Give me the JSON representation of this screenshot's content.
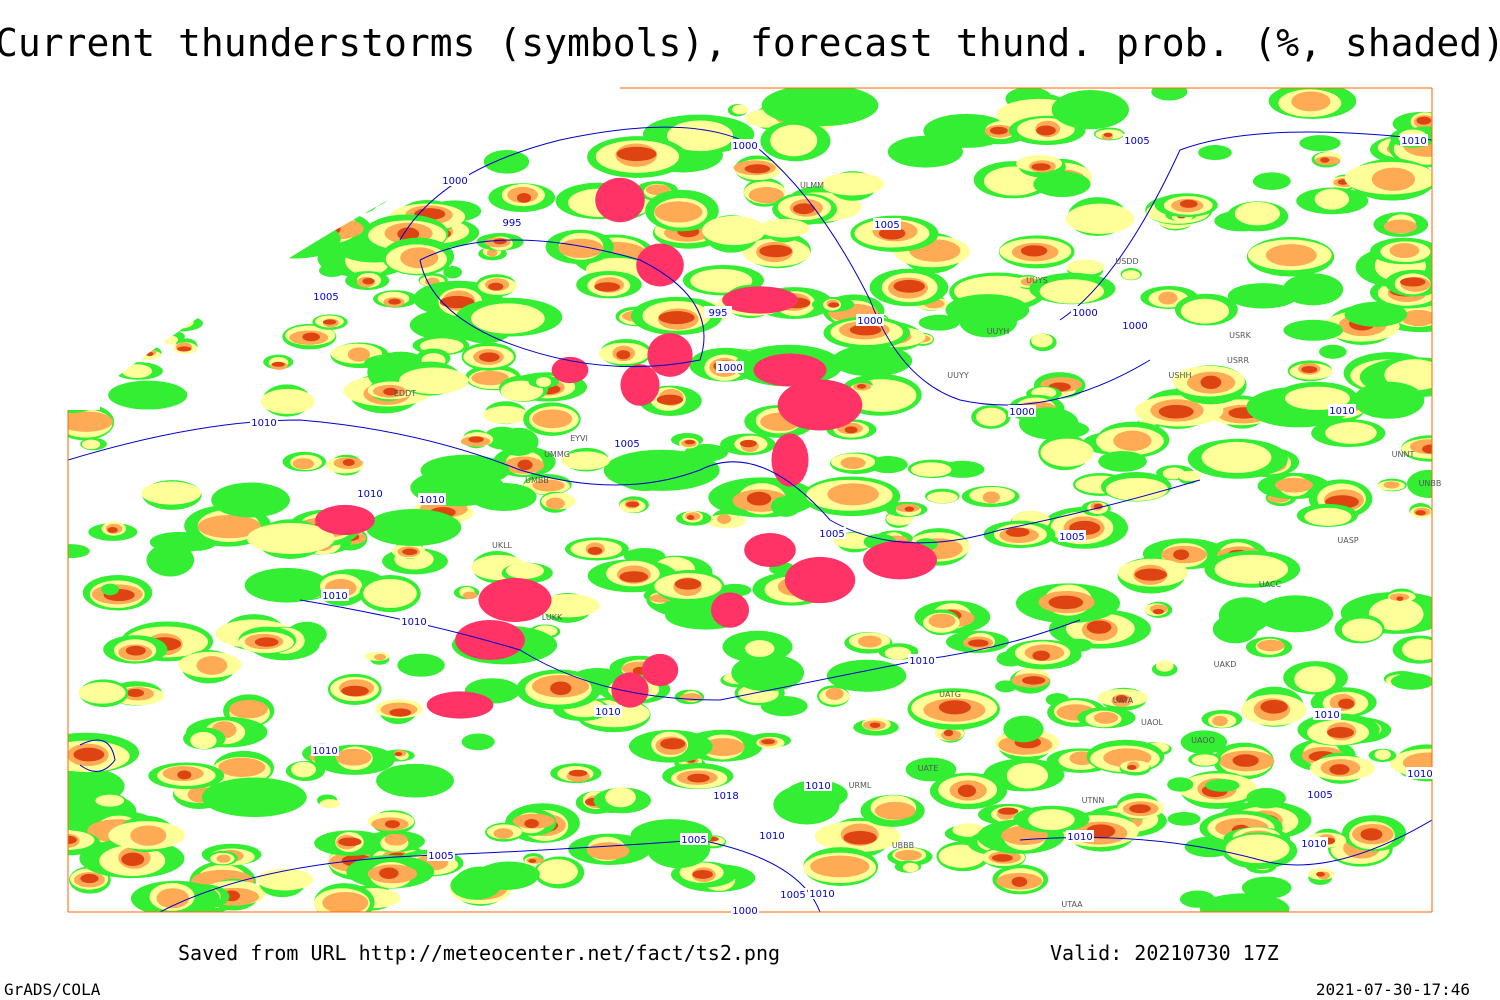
{
  "header": {
    "title": "Current thunderstorms (symbols), forecast thund. prob. (%, shaded)"
  },
  "footer": {
    "source": "Saved from URL http://meteocenter.net/fact/ts2.png",
    "valid": "Valid: 20210730 17Z",
    "software": "GrADS/COLA",
    "timestamp": "2021-07-30-17:46"
  },
  "labels": {
    "isobars": [
      "1000",
      "1005",
      "1010",
      "1000",
      "995",
      "1005",
      "1005",
      "995",
      "1000",
      "1000",
      "1000",
      "1000",
      "1010",
      "1010",
      "1005",
      "1000",
      "1010",
      "1010",
      "1005",
      "1005",
      "1010",
      "1010",
      "1010",
      "1010",
      "1010",
      "1010",
      "1010",
      "1010",
      "1018",
      "1005",
      "1005",
      "1010",
      "1010",
      "1010",
      "1005",
      "1005",
      "1010",
      "1000"
    ],
    "stations": [
      "ULMM",
      "UUYS",
      "USDD",
      "UUYH",
      "USRK",
      "USRR",
      "UUYY",
      "USHH",
      "UNNT",
      "UNBB",
      "UASP",
      "UACC",
      "UAKD",
      "UATA",
      "UAOL",
      "UAOO",
      "UTNN",
      "UTAA",
      "UATG",
      "UATE",
      "URML",
      "UBBB",
      "LUKK",
      "EYVI",
      "UMMG",
      "UMBB",
      "UKLL",
      "EDDT"
    ]
  }
}
